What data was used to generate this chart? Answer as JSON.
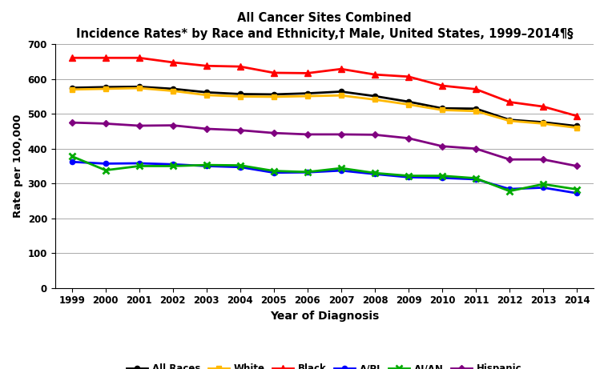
{
  "title_line1": "All Cancer Sites Combined",
  "title_line2": "Incidence Rates* by Race and Ethnicity,† Male, United States, 1999–2014¶§",
  "xlabel": "Year of Diagnosis",
  "ylabel": "Rate per 100,000",
  "years": [
    1999,
    2000,
    2001,
    2002,
    2003,
    2004,
    2005,
    2006,
    2007,
    2008,
    2009,
    2010,
    2011,
    2012,
    2013,
    2014
  ],
  "ylim": [
    0,
    700
  ],
  "yticks": [
    0,
    100,
    200,
    300,
    400,
    500,
    600,
    700
  ],
  "series": {
    "All Races": {
      "values": [
        575,
        577,
        578,
        572,
        562,
        557,
        556,
        559,
        564,
        551,
        535,
        516,
        515,
        483,
        476,
        465
      ],
      "color": "#000000",
      "linewidth": 2.0
    },
    "White": {
      "values": [
        570,
        572,
        574,
        566,
        554,
        550,
        549,
        551,
        553,
        541,
        527,
        511,
        508,
        480,
        472,
        460
      ],
      "color": "#FFB800",
      "linewidth": 2.0
    },
    "Black": {
      "values": [
        661,
        661,
        661,
        648,
        638,
        636,
        618,
        617,
        629,
        613,
        607,
        581,
        571,
        534,
        521,
        494
      ],
      "color": "#FF0000",
      "linewidth": 2.0
    },
    "A/PI": {
      "values": [
        362,
        357,
        358,
        355,
        350,
        347,
        331,
        332,
        337,
        327,
        318,
        316,
        312,
        284,
        288,
        272
      ],
      "color": "#0000FF",
      "linewidth": 2.0
    },
    "AI/AN": {
      "values": [
        378,
        338,
        350,
        350,
        353,
        352,
        336,
        333,
        344,
        330,
        322,
        322,
        315,
        278,
        298,
        283
      ],
      "color": "#00AA00",
      "linewidth": 2.0
    },
    "Hispanic": {
      "values": [
        475,
        472,
        466,
        467,
        457,
        453,
        445,
        441,
        441,
        440,
        430,
        407,
        400,
        369,
        369,
        350
      ],
      "color": "#800080",
      "linewidth": 2.0
    }
  },
  "legend_order": [
    "All Races",
    "White",
    "Black",
    "A/PI",
    "AI/AN",
    "Hispanic"
  ],
  "background_color": "#FFFFFF",
  "grid_color": "#AAAAAA"
}
